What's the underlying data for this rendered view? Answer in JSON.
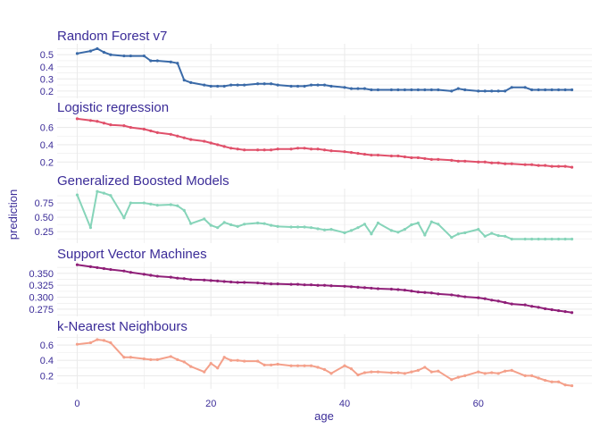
{
  "chart_data": {
    "type": "line",
    "xlabel": "age",
    "ylabel": "prediction",
    "x_ticks": [
      0,
      20,
      40,
      60
    ],
    "x_tick_labels": [
      "0",
      "20",
      "40",
      "60"
    ],
    "xlim": [
      -3,
      77
    ],
    "x": [
      0,
      2,
      3,
      4,
      5,
      7,
      8,
      10,
      11,
      12,
      14,
      15,
      16,
      17,
      19,
      20,
      21,
      22,
      23,
      24,
      25,
      27,
      28,
      29,
      30,
      32,
      33,
      34,
      35,
      36,
      37,
      38,
      40,
      41,
      42,
      43,
      44,
      45,
      47,
      48,
      49,
      50,
      51,
      52,
      53,
      54,
      56,
      57,
      58,
      60,
      61,
      62,
      63,
      64,
      65,
      67,
      68,
      69,
      70,
      71,
      72,
      73,
      74
    ],
    "text_color": "#3b2c98",
    "grid_color": "#ebebeb",
    "panels": [
      {
        "title": "Random Forest v7",
        "color": "#3a6aa8",
        "ylim": [
          0.14,
          0.59
        ],
        "y_ticks": [
          0.2,
          0.3,
          0.4,
          0.5
        ],
        "y_tick_labels": [
          "0.2",
          "0.3",
          "0.4",
          "0.5"
        ],
        "values": [
          0.51,
          0.53,
          0.55,
          0.52,
          0.5,
          0.49,
          0.49,
          0.49,
          0.45,
          0.45,
          0.44,
          0.43,
          0.29,
          0.27,
          0.25,
          0.24,
          0.24,
          0.24,
          0.25,
          0.25,
          0.25,
          0.26,
          0.26,
          0.26,
          0.25,
          0.24,
          0.24,
          0.24,
          0.25,
          0.25,
          0.25,
          0.24,
          0.23,
          0.22,
          0.22,
          0.22,
          0.21,
          0.21,
          0.21,
          0.21,
          0.21,
          0.21,
          0.21,
          0.21,
          0.21,
          0.21,
          0.2,
          0.22,
          0.21,
          0.2,
          0.2,
          0.2,
          0.2,
          0.2,
          0.23,
          0.23,
          0.21,
          0.21,
          0.21,
          0.21,
          0.21,
          0.21,
          0.21
        ]
      },
      {
        "title": "Logistic regression",
        "color": "#e0506a",
        "ylim": [
          0.11,
          0.74
        ],
        "y_ticks": [
          0.2,
          0.4,
          0.6
        ],
        "y_tick_labels": [
          "0.2",
          "0.4",
          "0.6"
        ],
        "values": [
          0.7,
          0.68,
          0.67,
          0.65,
          0.63,
          0.62,
          0.6,
          0.58,
          0.56,
          0.54,
          0.52,
          0.5,
          0.48,
          0.46,
          0.44,
          0.42,
          0.4,
          0.38,
          0.36,
          0.35,
          0.34,
          0.34,
          0.34,
          0.34,
          0.35,
          0.35,
          0.36,
          0.36,
          0.35,
          0.35,
          0.34,
          0.33,
          0.32,
          0.31,
          0.3,
          0.29,
          0.28,
          0.28,
          0.27,
          0.27,
          0.26,
          0.25,
          0.25,
          0.24,
          0.23,
          0.23,
          0.22,
          0.21,
          0.21,
          0.2,
          0.2,
          0.19,
          0.19,
          0.18,
          0.18,
          0.17,
          0.17,
          0.16,
          0.16,
          0.15,
          0.15,
          0.15,
          0.14
        ]
      },
      {
        "title": "Generalized Boosted Models",
        "color": "#86d4b9",
        "ylim": [
          0.05,
          1.0
        ],
        "y_ticks": [
          0.25,
          0.5,
          0.75
        ],
        "y_tick_labels": [
          "0.25",
          "0.50",
          "0.75"
        ],
        "values": [
          0.89,
          0.32,
          0.95,
          0.92,
          0.88,
          0.49,
          0.75,
          0.75,
          0.73,
          0.71,
          0.72,
          0.7,
          0.62,
          0.39,
          0.47,
          0.36,
          0.32,
          0.41,
          0.37,
          0.34,
          0.38,
          0.4,
          0.39,
          0.36,
          0.34,
          0.33,
          0.33,
          0.33,
          0.32,
          0.3,
          0.28,
          0.29,
          0.23,
          0.27,
          0.32,
          0.38,
          0.21,
          0.4,
          0.27,
          0.24,
          0.29,
          0.37,
          0.4,
          0.19,
          0.42,
          0.38,
          0.15,
          0.21,
          0.23,
          0.29,
          0.17,
          0.22,
          0.18,
          0.17,
          0.12,
          0.12,
          0.12,
          0.12,
          0.12,
          0.12,
          0.12,
          0.12,
          0.12
        ]
      },
      {
        "title": "Support Vector Machines",
        "color": "#8f1f78",
        "ylim": [
          0.26,
          0.374
        ],
        "y_ticks": [
          0.275,
          0.3,
          0.325,
          0.35
        ],
        "y_tick_labels": [
          "0.275",
          "0.300",
          "0.325",
          "0.350"
        ],
        "values": [
          0.368,
          0.364,
          0.362,
          0.36,
          0.358,
          0.355,
          0.352,
          0.348,
          0.346,
          0.344,
          0.342,
          0.34,
          0.339,
          0.337,
          0.336,
          0.335,
          0.334,
          0.333,
          0.332,
          0.331,
          0.331,
          0.33,
          0.329,
          0.328,
          0.328,
          0.327,
          0.327,
          0.326,
          0.326,
          0.325,
          0.325,
          0.324,
          0.323,
          0.322,
          0.321,
          0.32,
          0.319,
          0.318,
          0.317,
          0.316,
          0.315,
          0.313,
          0.311,
          0.31,
          0.309,
          0.307,
          0.305,
          0.303,
          0.301,
          0.299,
          0.297,
          0.294,
          0.292,
          0.289,
          0.286,
          0.284,
          0.281,
          0.279,
          0.276,
          0.274,
          0.272,
          0.27,
          0.268
        ]
      },
      {
        "title": "k-Nearest Neighbours",
        "color": "#f4a08a",
        "ylim": [
          0.03,
          0.74
        ],
        "y_ticks": [
          0.2,
          0.4,
          0.6
        ],
        "y_tick_labels": [
          "0.2",
          "0.4",
          "0.6"
        ],
        "values": [
          0.61,
          0.63,
          0.67,
          0.66,
          0.63,
          0.44,
          0.44,
          0.42,
          0.41,
          0.41,
          0.45,
          0.41,
          0.38,
          0.32,
          0.25,
          0.36,
          0.3,
          0.44,
          0.4,
          0.4,
          0.39,
          0.39,
          0.34,
          0.34,
          0.35,
          0.33,
          0.33,
          0.33,
          0.33,
          0.31,
          0.28,
          0.23,
          0.33,
          0.29,
          0.21,
          0.24,
          0.25,
          0.25,
          0.24,
          0.24,
          0.23,
          0.25,
          0.27,
          0.31,
          0.25,
          0.26,
          0.15,
          0.18,
          0.2,
          0.25,
          0.23,
          0.24,
          0.23,
          0.26,
          0.27,
          0.2,
          0.2,
          0.17,
          0.14,
          0.12,
          0.12,
          0.08,
          0.07
        ]
      }
    ]
  }
}
